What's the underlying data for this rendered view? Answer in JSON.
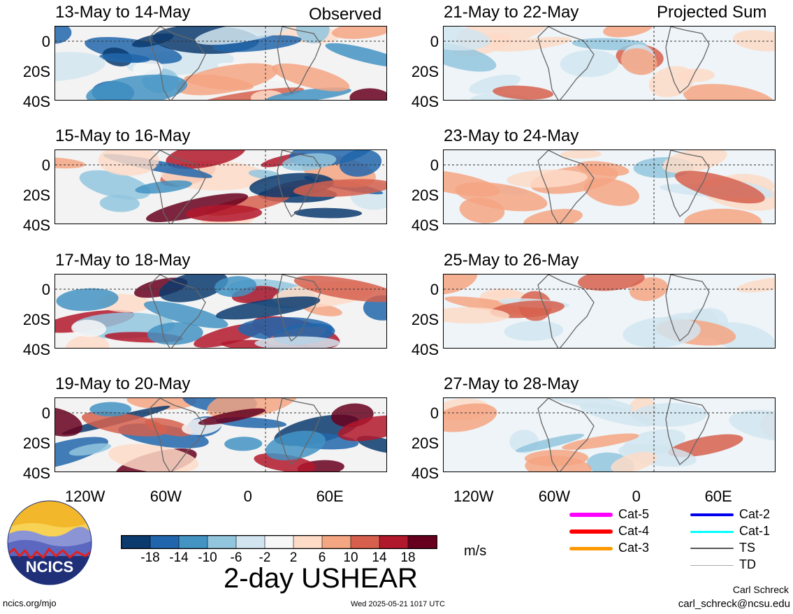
{
  "header": {
    "left_label": "Observed",
    "right_label": "Projected Sum"
  },
  "panels": [
    {
      "title": "13-May to 14-May",
      "column": "observed"
    },
    {
      "title": "15-May to 16-May",
      "column": "observed"
    },
    {
      "title": "17-May to 18-May",
      "column": "observed"
    },
    {
      "title": "19-May to 20-May",
      "column": "observed"
    },
    {
      "title": "21-May to 22-May",
      "column": "projected"
    },
    {
      "title": "23-May to 24-May",
      "column": "projected"
    },
    {
      "title": "25-May to 26-May",
      "column": "projected"
    },
    {
      "title": "27-May to 28-May",
      "column": "projected"
    }
  ],
  "chart_data": {
    "type": "heatmap",
    "variable": "2-day USHEAR",
    "units": "m/s",
    "y_ticks": [
      "0",
      "20S",
      "40S"
    ],
    "x_ticks": [
      "120W",
      "60W",
      "0",
      "60E"
    ],
    "colorbar": {
      "tick_labels": [
        "-18",
        "-14",
        "-10",
        "-6",
        "-2",
        "2",
        "6",
        "10",
        "14",
        "18"
      ],
      "colors": [
        "#0b3a6e",
        "#2166ac",
        "#4393c3",
        "#92c5de",
        "#d1e5f0",
        "#f7f7f7",
        "#fddbc7",
        "#f4a582",
        "#d6604d",
        "#b2182b",
        "#67001f"
      ]
    }
  },
  "legend": {
    "items": [
      {
        "label": "Cat-5",
        "color": "#ff00ff"
      },
      {
        "label": "Cat-4",
        "color": "#ff0000"
      },
      {
        "label": "Cat-3",
        "color": "#ff9900"
      },
      {
        "label": "Cat-2",
        "color": "#0000ee"
      },
      {
        "label": "Cat-1",
        "color": "#00ffff"
      },
      {
        "label": "TS",
        "color": "#555555"
      },
      {
        "label": "TD",
        "color": "#aaaaaa"
      }
    ]
  },
  "logo": {
    "text": "NCICS"
  },
  "footer": {
    "url": "ncics.org/mjo",
    "timestamp": "Wed 2025-05-21 1017 UTC",
    "author": "Carl Schreck",
    "email": "carl_schreck@ncsu.edu"
  }
}
